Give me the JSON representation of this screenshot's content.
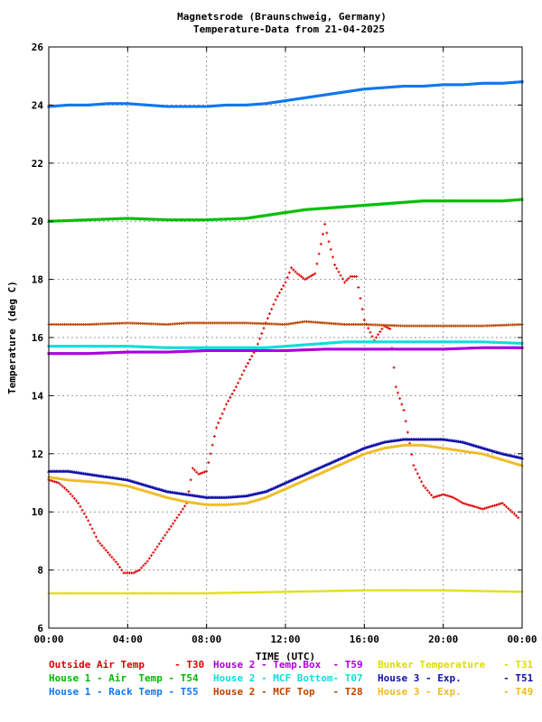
{
  "chart_data": {
    "type": "scatter",
    "title": "Magnetsrode (Braunschweig, Germany)",
    "subtitle": "Temperature-Data from 21-04-2025",
    "xlabel": "TIME (UTC)",
    "ylabel": "Temperature (deg C)",
    "x_unit": "hours UTC",
    "xlim": [
      0,
      24
    ],
    "ylim": [
      6,
      26
    ],
    "x_ticks": [
      0,
      4,
      8,
      12,
      16,
      20,
      24
    ],
    "x_tick_labels": [
      "00:00",
      "04:00",
      "08:00",
      "12:00",
      "16:00",
      "20:00",
      "00:00"
    ],
    "y_ticks": [
      6,
      8,
      10,
      12,
      14,
      16,
      18,
      20,
      22,
      24,
      26
    ],
    "y_tick_labels": [
      "6",
      "8",
      "10",
      "12",
      "14",
      "16",
      "18",
      "20",
      "22",
      "24",
      "26"
    ],
    "grid": true,
    "legend_position": "bottom",
    "series": [
      {
        "name": "Outside Air Temp     - T30",
        "color": "#dd0000",
        "marker": "+",
        "x": [
          0,
          0.5,
          1,
          1.5,
          2,
          2.5,
          3,
          3.5,
          3.8,
          4,
          4.3,
          4.6,
          5,
          5.5,
          6,
          6.5,
          7,
          7.3,
          7.6,
          8,
          8.5,
          9,
          9.5,
          10,
          10.5,
          11,
          11.5,
          12,
          12.3,
          12.6,
          13,
          13.5,
          14,
          14.2,
          14.5,
          15,
          15.3,
          15.6,
          16,
          16.5,
          17,
          17.3,
          17.6,
          18,
          18.5,
          19,
          19.5,
          20,
          20.5,
          21,
          21.5,
          22,
          22.5,
          23,
          23.5,
          23.8
        ],
        "y": [
          11.1,
          11.0,
          10.7,
          10.3,
          9.7,
          9.0,
          8.6,
          8.2,
          7.9,
          7.9,
          7.9,
          8.0,
          8.3,
          8.8,
          9.3,
          9.8,
          10.3,
          11.5,
          11.3,
          11.4,
          12.9,
          13.7,
          14.3,
          15.0,
          15.6,
          16.5,
          17.3,
          17.9,
          18.4,
          18.2,
          18.0,
          18.2,
          19.9,
          19.3,
          18.5,
          17.9,
          18.1,
          18.1,
          16.6,
          15.9,
          16.4,
          16.3,
          14.3,
          13.5,
          11.6,
          10.9,
          10.5,
          10.6,
          10.5,
          10.3,
          10.2,
          10.1,
          10.2,
          10.3,
          10.0,
          9.8
        ]
      },
      {
        "name": "House 1 - Air  Temp - T54",
        "color": "#00bb00",
        "marker": "x",
        "x": [
          0,
          2,
          4,
          6,
          8,
          10,
          11,
          12,
          13,
          14,
          15,
          16,
          17,
          18,
          19,
          20,
          21,
          22,
          23,
          24
        ],
        "y": [
          20.0,
          20.05,
          20.1,
          20.05,
          20.05,
          20.1,
          20.2,
          20.3,
          20.4,
          20.45,
          20.5,
          20.55,
          20.6,
          20.65,
          20.7,
          20.7,
          20.7,
          20.7,
          20.7,
          20.75
        ]
      },
      {
        "name": "House 1 - Rack Temp - T55",
        "color": "#1177ee",
        "marker": "square",
        "x": [
          0,
          1,
          2,
          3,
          4,
          5,
          6,
          7,
          8,
          9,
          10,
          11,
          12,
          13,
          14,
          15,
          16,
          17,
          18,
          19,
          20,
          21,
          22,
          23,
          24
        ],
        "y": [
          23.95,
          24.0,
          24.0,
          24.05,
          24.05,
          24.0,
          23.95,
          23.95,
          23.95,
          24.0,
          24.0,
          24.05,
          24.15,
          24.25,
          24.35,
          24.45,
          24.55,
          24.6,
          24.65,
          24.65,
          24.7,
          24.7,
          24.75,
          24.75,
          24.8
        ]
      },
      {
        "name": "House 2 - Temp.Box  - T59",
        "color": "#aa00dd",
        "marker": "square",
        "x": [
          0,
          2,
          4,
          6,
          8,
          10,
          12,
          14,
          16,
          18,
          20,
          22,
          24
        ],
        "y": [
          15.45,
          15.45,
          15.5,
          15.5,
          15.55,
          15.55,
          15.55,
          15.6,
          15.6,
          15.6,
          15.6,
          15.65,
          15.65
        ]
      },
      {
        "name": "House 2 - MCF Bottom- T07",
        "color": "#11dddd",
        "marker": "square",
        "x": [
          0,
          2,
          4,
          6,
          8,
          10,
          11,
          12,
          13,
          14,
          15,
          16,
          18,
          20,
          22,
          24
        ],
        "y": [
          15.7,
          15.7,
          15.7,
          15.65,
          15.65,
          15.65,
          15.65,
          15.7,
          15.75,
          15.8,
          15.85,
          15.85,
          15.85,
          15.85,
          15.85,
          15.8
        ]
      },
      {
        "name": "House 2 - MCF Top   - T28",
        "color": "#bb4400",
        "marker": "+",
        "x": [
          0,
          2,
          4,
          6,
          7,
          8,
          10,
          12,
          13,
          14,
          15,
          16,
          18,
          20,
          22,
          24
        ],
        "y": [
          16.45,
          16.45,
          16.5,
          16.45,
          16.5,
          16.5,
          16.5,
          16.45,
          16.55,
          16.5,
          16.45,
          16.45,
          16.4,
          16.4,
          16.4,
          16.45
        ]
      },
      {
        "name": "Bunker Temperature   - T31",
        "color": "#dddd00",
        "marker": "+",
        "x": [
          0,
          4,
          8,
          12,
          16,
          20,
          24
        ],
        "y": [
          7.2,
          7.2,
          7.2,
          7.25,
          7.3,
          7.3,
          7.25
        ]
      },
      {
        "name": "House 3 - Exp.       - T51",
        "color": "#1111aa",
        "marker": "triangle",
        "x": [
          0,
          1,
          2,
          3,
          4,
          5,
          6,
          7,
          8,
          9,
          10,
          11,
          12,
          13,
          14,
          15,
          16,
          17,
          18,
          19,
          20,
          21,
          22,
          23,
          24
        ],
        "y": [
          11.4,
          11.4,
          11.3,
          11.2,
          11.1,
          10.9,
          10.7,
          10.6,
          10.5,
          10.5,
          10.55,
          10.7,
          11.0,
          11.3,
          11.6,
          11.9,
          12.2,
          12.4,
          12.5,
          12.5,
          12.5,
          12.4,
          12.2,
          12.0,
          11.85
        ]
      },
      {
        "name": "House 3 - Exp.       - T49",
        "color": "#eebb22",
        "marker": "triangle",
        "x": [
          0,
          1,
          2,
          3,
          4,
          5,
          6,
          7,
          8,
          9,
          10,
          11,
          12,
          13,
          14,
          15,
          16,
          17,
          18,
          19,
          20,
          21,
          22,
          23,
          24
        ],
        "y": [
          11.2,
          11.1,
          11.05,
          11.0,
          10.9,
          10.7,
          10.5,
          10.35,
          10.25,
          10.25,
          10.3,
          10.5,
          10.8,
          11.1,
          11.4,
          11.7,
          12.0,
          12.2,
          12.3,
          12.3,
          12.2,
          12.1,
          12.0,
          11.8,
          11.6
        ]
      }
    ]
  },
  "legend": [
    [
      {
        "label": "Outside Air Temp     - T30",
        "color": "#dd0000"
      },
      {
        "label": "House 2 - Temp.Box  - T59",
        "color": "#aa00dd"
      },
      {
        "label": "Bunker Temperature   - T31",
        "color": "#dddd00"
      }
    ],
    [
      {
        "label": "House 1 - Air  Temp - T54",
        "color": "#00bb00"
      },
      {
        "label": "House 2 - MCF Bottom- T07",
        "color": "#11dddd"
      },
      {
        "label": "House 3 - Exp.       - T51",
        "color": "#1111aa"
      }
    ],
    [
      {
        "label": "House 1 - Rack Temp - T55",
        "color": "#1177ee"
      },
      {
        "label": "House 2 - MCF Top   - T28",
        "color": "#bb4400"
      },
      {
        "label": "House 3 - Exp.       - T49",
        "color": "#eebb22"
      }
    ]
  ]
}
